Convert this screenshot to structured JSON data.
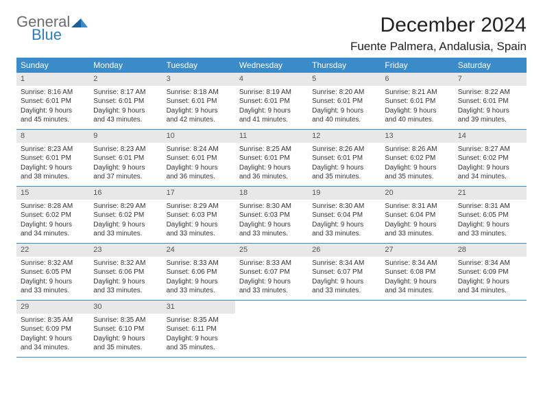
{
  "logo": {
    "line1": "General",
    "line2": "Blue"
  },
  "title": "December 2024",
  "location": "Fuente Palmera, Andalusia, Spain",
  "colors": {
    "header_bg": "#3b8bc9",
    "header_text": "#ffffff",
    "daynum_bg": "#e8e8e8",
    "text": "#333333",
    "logo_gray": "#6b6b6b",
    "logo_blue": "#2b7bbf",
    "week_border": "#3b8bc9"
  },
  "weekdays": [
    "Sunday",
    "Monday",
    "Tuesday",
    "Wednesday",
    "Thursday",
    "Friday",
    "Saturday"
  ],
  "days": [
    {
      "n": "1",
      "sunrise": "8:16 AM",
      "sunset": "6:01 PM",
      "dl1": "9 hours",
      "dl2": "and 45 minutes."
    },
    {
      "n": "2",
      "sunrise": "8:17 AM",
      "sunset": "6:01 PM",
      "dl1": "9 hours",
      "dl2": "and 43 minutes."
    },
    {
      "n": "3",
      "sunrise": "8:18 AM",
      "sunset": "6:01 PM",
      "dl1": "9 hours",
      "dl2": "and 42 minutes."
    },
    {
      "n": "4",
      "sunrise": "8:19 AM",
      "sunset": "6:01 PM",
      "dl1": "9 hours",
      "dl2": "and 41 minutes."
    },
    {
      "n": "5",
      "sunrise": "8:20 AM",
      "sunset": "6:01 PM",
      "dl1": "9 hours",
      "dl2": "and 40 minutes."
    },
    {
      "n": "6",
      "sunrise": "8:21 AM",
      "sunset": "6:01 PM",
      "dl1": "9 hours",
      "dl2": "and 40 minutes."
    },
    {
      "n": "7",
      "sunrise": "8:22 AM",
      "sunset": "6:01 PM",
      "dl1": "9 hours",
      "dl2": "and 39 minutes."
    },
    {
      "n": "8",
      "sunrise": "8:23 AM",
      "sunset": "6:01 PM",
      "dl1": "9 hours",
      "dl2": "and 38 minutes."
    },
    {
      "n": "9",
      "sunrise": "8:23 AM",
      "sunset": "6:01 PM",
      "dl1": "9 hours",
      "dl2": "and 37 minutes."
    },
    {
      "n": "10",
      "sunrise": "8:24 AM",
      "sunset": "6:01 PM",
      "dl1": "9 hours",
      "dl2": "and 36 minutes."
    },
    {
      "n": "11",
      "sunrise": "8:25 AM",
      "sunset": "6:01 PM",
      "dl1": "9 hours",
      "dl2": "and 36 minutes."
    },
    {
      "n": "12",
      "sunrise": "8:26 AM",
      "sunset": "6:01 PM",
      "dl1": "9 hours",
      "dl2": "and 35 minutes."
    },
    {
      "n": "13",
      "sunrise": "8:26 AM",
      "sunset": "6:02 PM",
      "dl1": "9 hours",
      "dl2": "and 35 minutes."
    },
    {
      "n": "14",
      "sunrise": "8:27 AM",
      "sunset": "6:02 PM",
      "dl1": "9 hours",
      "dl2": "and 34 minutes."
    },
    {
      "n": "15",
      "sunrise": "8:28 AM",
      "sunset": "6:02 PM",
      "dl1": "9 hours",
      "dl2": "and 34 minutes."
    },
    {
      "n": "16",
      "sunrise": "8:29 AM",
      "sunset": "6:02 PM",
      "dl1": "9 hours",
      "dl2": "and 33 minutes."
    },
    {
      "n": "17",
      "sunrise": "8:29 AM",
      "sunset": "6:03 PM",
      "dl1": "9 hours",
      "dl2": "and 33 minutes."
    },
    {
      "n": "18",
      "sunrise": "8:30 AM",
      "sunset": "6:03 PM",
      "dl1": "9 hours",
      "dl2": "and 33 minutes."
    },
    {
      "n": "19",
      "sunrise": "8:30 AM",
      "sunset": "6:04 PM",
      "dl1": "9 hours",
      "dl2": "and 33 minutes."
    },
    {
      "n": "20",
      "sunrise": "8:31 AM",
      "sunset": "6:04 PM",
      "dl1": "9 hours",
      "dl2": "and 33 minutes."
    },
    {
      "n": "21",
      "sunrise": "8:31 AM",
      "sunset": "6:05 PM",
      "dl1": "9 hours",
      "dl2": "and 33 minutes."
    },
    {
      "n": "22",
      "sunrise": "8:32 AM",
      "sunset": "6:05 PM",
      "dl1": "9 hours",
      "dl2": "and 33 minutes."
    },
    {
      "n": "23",
      "sunrise": "8:32 AM",
      "sunset": "6:06 PM",
      "dl1": "9 hours",
      "dl2": "and 33 minutes."
    },
    {
      "n": "24",
      "sunrise": "8:33 AM",
      "sunset": "6:06 PM",
      "dl1": "9 hours",
      "dl2": "and 33 minutes."
    },
    {
      "n": "25",
      "sunrise": "8:33 AM",
      "sunset": "6:07 PM",
      "dl1": "9 hours",
      "dl2": "and 33 minutes."
    },
    {
      "n": "26",
      "sunrise": "8:34 AM",
      "sunset": "6:07 PM",
      "dl1": "9 hours",
      "dl2": "and 33 minutes."
    },
    {
      "n": "27",
      "sunrise": "8:34 AM",
      "sunset": "6:08 PM",
      "dl1": "9 hours",
      "dl2": "and 34 minutes."
    },
    {
      "n": "28",
      "sunrise": "8:34 AM",
      "sunset": "6:09 PM",
      "dl1": "9 hours",
      "dl2": "and 34 minutes."
    },
    {
      "n": "29",
      "sunrise": "8:35 AM",
      "sunset": "6:09 PM",
      "dl1": "9 hours",
      "dl2": "and 34 minutes."
    },
    {
      "n": "30",
      "sunrise": "8:35 AM",
      "sunset": "6:10 PM",
      "dl1": "9 hours",
      "dl2": "and 35 minutes."
    },
    {
      "n": "31",
      "sunrise": "8:35 AM",
      "sunset": "6:11 PM",
      "dl1": "9 hours",
      "dl2": "and 35 minutes."
    }
  ],
  "labels": {
    "sunrise": "Sunrise: ",
    "sunset": "Sunset: ",
    "daylight": "Daylight: "
  }
}
